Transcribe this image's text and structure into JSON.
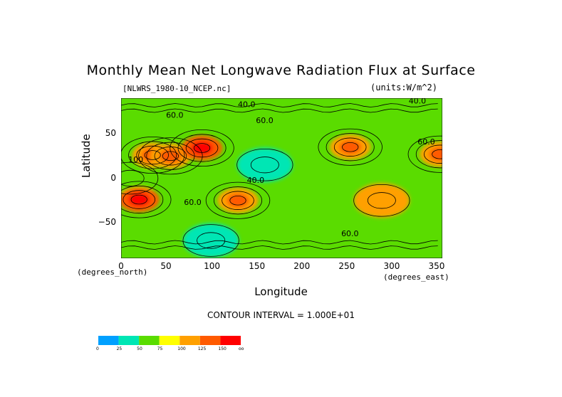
{
  "chart_data": {
    "type": "heatmap",
    "title": "Monthly Mean Net Longwave Radiation Flux at Surface",
    "dataset_label": "[NLWRS_1980-10_NCEP.nc]",
    "units_label": "(units:W/m^2)",
    "xlabel": "Longitude",
    "ylabel": "Latitude",
    "x_unit_label": "(degrees_east)",
    "y_unit_label": "(degrees_north)",
    "xlim": [
      0,
      357.5
    ],
    "ylim": [
      -90,
      90
    ],
    "x_ticks": [
      "0",
      "50",
      "100",
      "150",
      "200",
      "250",
      "300",
      "350"
    ],
    "x_tick_values": [
      0,
      50,
      100,
      150,
      200,
      250,
      300,
      350
    ],
    "y_ticks": [
      "50",
      "0",
      "−50"
    ],
    "y_tick_values": [
      50,
      0,
      -50
    ],
    "contour_interval_text": "CONTOUR INTERVAL = 1.000E+01",
    "contour_labels": [
      {
        "text": "60.0",
        "lon": 50,
        "lat": 68
      },
      {
        "text": "40.0",
        "lon": 130,
        "lat": 80
      },
      {
        "text": "60.0",
        "lon": 150,
        "lat": 62
      },
      {
        "text": "40.0",
        "lon": 320,
        "lat": 84
      },
      {
        "text": "60.0",
        "lon": 330,
        "lat": 38
      },
      {
        "text": "100",
        "lon": 8,
        "lat": 18
      },
      {
        "text": "60.0",
        "lon": 70,
        "lat": -30
      },
      {
        "text": "40.0",
        "lon": 140,
        "lat": -5
      },
      {
        "text": "60.0",
        "lon": 245,
        "lat": -65
      }
    ],
    "colorbar": {
      "colors": [
        "#00a0ff",
        "#00e6b4",
        "#5adc00",
        "#ffff00",
        "#ffa000",
        "#ff5a00",
        "#ff0000"
      ],
      "labels": [
        "0",
        "25",
        "50",
        "75",
        "100",
        "125",
        "150",
        "oo"
      ]
    },
    "features": [
      {
        "lon": 10,
        "lat": 0,
        "value": 50
      },
      {
        "lon": 35,
        "lat": 26,
        "value": 110
      },
      {
        "lon": 55,
        "lat": 25,
        "value": 120
      },
      {
        "lon": 90,
        "lat": 34,
        "value": 125
      },
      {
        "lon": 20,
        "lat": -24,
        "value": 135
      },
      {
        "lon": 130,
        "lat": -25,
        "value": 110
      },
      {
        "lon": 255,
        "lat": 35,
        "value": 110
      },
      {
        "lon": 355,
        "lat": 27,
        "value": 110
      },
      {
        "lon": 290,
        "lat": -25,
        "value": 100
      },
      {
        "lon": 160,
        "lat": 15,
        "value": 30
      },
      {
        "lon": 100,
        "lat": -70,
        "value": 45
      }
    ]
  }
}
